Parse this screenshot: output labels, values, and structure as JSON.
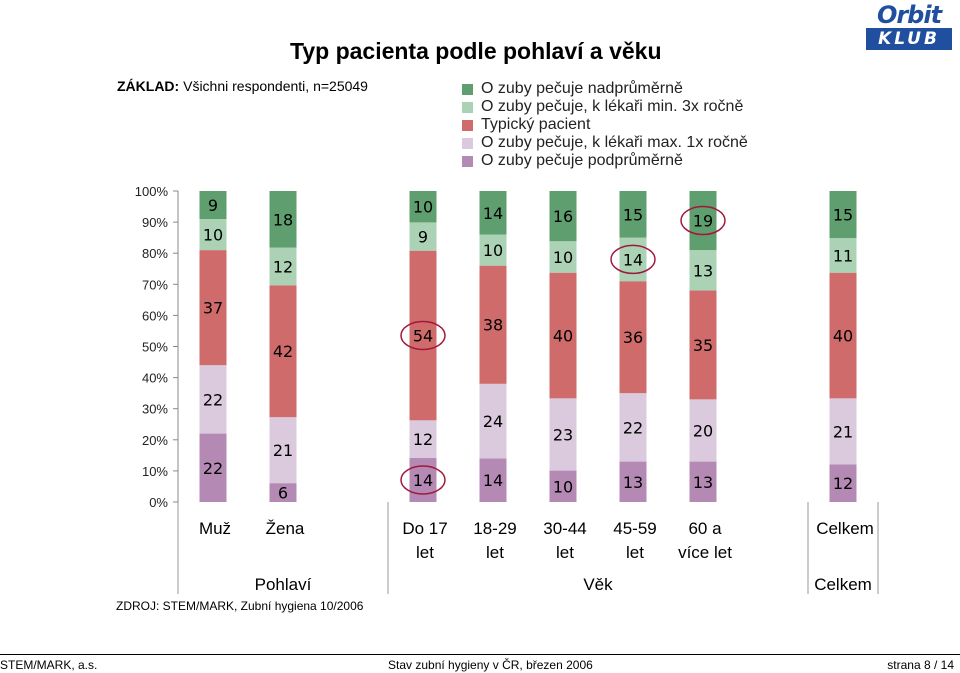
{
  "title": "Typ pacienta podle pohlaví a věku",
  "base": {
    "label": "ZÁKLAD:",
    "text": "Všichni respondenti, n=25049"
  },
  "logo": {
    "top": "Orbit",
    "bottom": "KLUB"
  },
  "source": "ZDROJ: STEM/MARK, Zubní hygiena  10/2006",
  "footer": {
    "left": "STEM/MARK, a.s.",
    "center": "Stav zubní hygieny v ČR, březen 2006",
    "right": "strana 8 / 14"
  },
  "colors": {
    "above": "#5f9e6e",
    "doctor3x": "#abd2b4",
    "typical": "#cf6b6b",
    "doctor1x": "#dbc9dd",
    "below": "#b48ab4",
    "highlight": "#a0193b"
  },
  "chart_data": {
    "type": "bar",
    "stacked": true,
    "normalized": true,
    "ylim": [
      0,
      100
    ],
    "yticks": [
      "0%",
      "10%",
      "20%",
      "30%",
      "40%",
      "50%",
      "60%",
      "70%",
      "80%",
      "90%",
      "100%"
    ],
    "legend_position": "top",
    "categories": [
      "Muž",
      "Žena",
      "Do 17 let",
      "18-29 let",
      "30-44 let",
      "45-59 let",
      "60 a více let",
      "Celkem"
    ],
    "groups": [
      {
        "label": "Pohlaví",
        "categories": [
          "Muž",
          "Žena"
        ]
      },
      {
        "label": "Věk",
        "categories": [
          "Do 17 let",
          "18-29 let",
          "30-44 let",
          "45-59 let",
          "60 a více let"
        ]
      },
      {
        "label": "Celkem",
        "categories": [
          "Celkem"
        ]
      }
    ],
    "series": [
      {
        "name": "O zuby pečuje podprůměrně",
        "color_key": "below",
        "values": [
          22,
          6,
          14,
          14,
          10,
          13,
          13,
          12
        ]
      },
      {
        "name": "O zuby pečuje, k lékaři max. 1x ročně",
        "color_key": "doctor1x",
        "values": [
          22,
          21,
          12,
          24,
          23,
          22,
          20,
          21
        ]
      },
      {
        "name": "Typický pacient",
        "color_key": "typical",
        "values": [
          37,
          42,
          54,
          38,
          40,
          36,
          35,
          40
        ]
      },
      {
        "name": "O zuby pečuje, k lékaři min. 3x ročně",
        "color_key": "doctor3x",
        "values": [
          10,
          12,
          9,
          10,
          10,
          14,
          13,
          11
        ]
      },
      {
        "name": "O zuby pečuje nadprůměrně",
        "color_key": "above",
        "values": [
          9,
          18,
          10,
          14,
          16,
          15,
          19,
          15
        ]
      }
    ],
    "legend_order": [
      4,
      3,
      2,
      1,
      0
    ],
    "highlighted": [
      {
        "category": "Do 17 let",
        "series": "Typický pacient"
      },
      {
        "category": "Do 17 let",
        "series": "O zuby pečuje podprůměrně"
      },
      {
        "category": "45-59 let",
        "series": "O zuby pečuje, k lékaři min. 3x ročně"
      },
      {
        "category": "60 a více let",
        "series": "O zuby pečuje nadprůměrně"
      }
    ]
  }
}
